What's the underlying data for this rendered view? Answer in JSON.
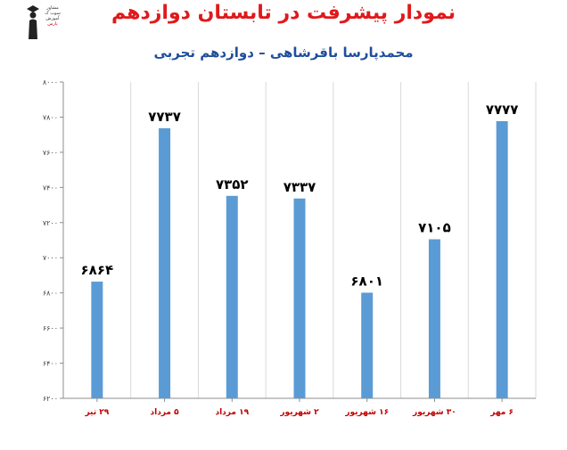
{
  "logo": {
    "lines": [
      "مشاور",
      "سوت ک",
      "آموزش"
    ],
    "accent": "پارس"
  },
  "chart_data": {
    "type": "bar",
    "title": "نمودار پیشرفت در تابستان دوازدهم",
    "subtitle": "محمدپارسا باقرشاهی – دوازدهم تجربی",
    "categories": [
      "۲۹ تیر",
      "۵ مرداد",
      "۱۹ مرداد",
      "۲ شهریور",
      "۱۶ شهریور",
      "۳۰ شهریور",
      "۶ مهر"
    ],
    "values": [
      6864,
      7737,
      7352,
      7337,
      6801,
      7105,
      7777
    ],
    "value_labels": [
      "۶۸۶۴",
      "۷۷۳۷",
      "۷۳۵۲",
      "۷۳۳۷",
      "۶۸۰۱",
      "۷۱۰۵",
      "۷۷۷۷"
    ],
    "ylim": [
      6200,
      8000
    ],
    "yticks": [
      6200,
      6400,
      6600,
      6800,
      7000,
      7200,
      7400,
      7600,
      7800,
      8000
    ],
    "ytick_labels": [
      "۶۲۰۰",
      "۶۴۰۰",
      "۶۶۰۰",
      "۶۸۰۰",
      "۷۰۰۰",
      "۷۲۰۰",
      "۷۴۰۰",
      "۷۶۰۰",
      "۷۸۰۰",
      "۸۰۰۰"
    ],
    "grid": "vertical",
    "colors": {
      "bar": "#5b9bd5",
      "category_label": "#c00000",
      "title": "#e0191b",
      "subtitle": "#1f4e9c"
    }
  }
}
